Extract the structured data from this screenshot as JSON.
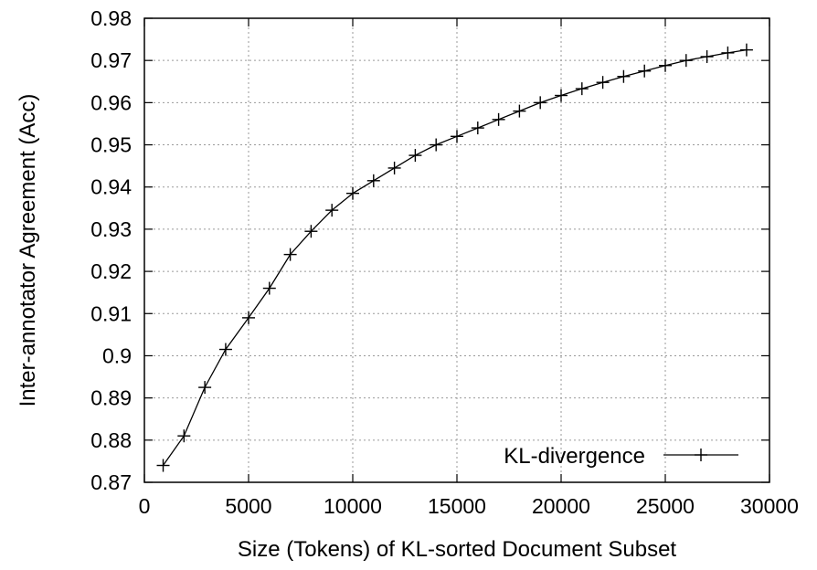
{
  "chart_data": {
    "type": "line",
    "title": "",
    "xlabel": "Size (Tokens) of KL-sorted Document Subset",
    "ylabel": "Inter-annotator Agreement (Acc)",
    "xlim": [
      0,
      30000
    ],
    "ylim": [
      0.87,
      0.98
    ],
    "xticks": [
      0,
      5000,
      10000,
      15000,
      20000,
      25000,
      30000
    ],
    "xtick_labels": [
      "0",
      "5000",
      "10000",
      "15000",
      "20000",
      "25000",
      "30000"
    ],
    "yticks": [
      0.87,
      0.88,
      0.89,
      0.9,
      0.91,
      0.92,
      0.93,
      0.94,
      0.95,
      0.96,
      0.97,
      0.98
    ],
    "ytick_labels": [
      "0.87",
      "0.88",
      "0.89",
      "0.9",
      "0.91",
      "0.92",
      "0.93",
      "0.94",
      "0.95",
      "0.96",
      "0.97",
      "0.98"
    ],
    "grid": true,
    "legend_position": "bottom-right",
    "series": [
      {
        "name": "KL-divergence",
        "marker": "plus",
        "color": "#000000",
        "x": [
          900,
          1900,
          2900,
          3900,
          5000,
          6000,
          7000,
          8000,
          9000,
          10000,
          11000,
          12000,
          13000,
          14000,
          15000,
          16000,
          17000,
          18000,
          19000,
          20000,
          21000,
          22000,
          23000,
          24000,
          25000,
          26000,
          27000,
          28000,
          28900
        ],
        "y": [
          0.874,
          0.881,
          0.8925,
          0.9015,
          0.909,
          0.916,
          0.924,
          0.9295,
          0.9345,
          0.9385,
          0.9415,
          0.9445,
          0.9475,
          0.95,
          0.952,
          0.954,
          0.956,
          0.958,
          0.96,
          0.9617,
          0.9633,
          0.9648,
          0.9662,
          0.9675,
          0.9688,
          0.97,
          0.9709,
          0.9718,
          0.9725
        ]
      }
    ]
  }
}
